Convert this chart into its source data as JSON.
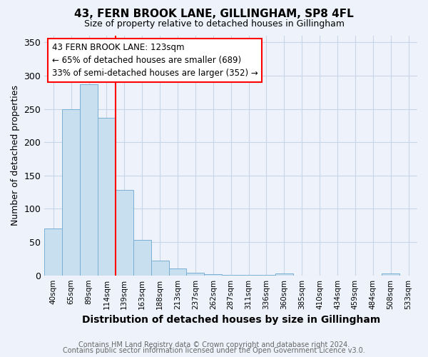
{
  "title1": "43, FERN BROOK LANE, GILLINGHAM, SP8 4FL",
  "title2": "Size of property relative to detached houses in Gillingham",
  "xlabel": "Distribution of detached houses by size in Gillingham",
  "ylabel": "Number of detached properties",
  "footnote1": "Contains HM Land Registry data © Crown copyright and database right 2024.",
  "footnote2": "Contains public sector information licensed under the Open Government Licence v3.0.",
  "categories": [
    "40sqm",
    "65sqm",
    "89sqm",
    "114sqm",
    "139sqm",
    "163sqm",
    "188sqm",
    "213sqm",
    "237sqm",
    "262sqm",
    "287sqm",
    "311sqm",
    "336sqm",
    "360sqm",
    "385sqm",
    "410sqm",
    "434sqm",
    "459sqm",
    "484sqm",
    "508sqm",
    "533sqm"
  ],
  "values": [
    70,
    250,
    287,
    237,
    128,
    53,
    22,
    10,
    4,
    2,
    1,
    1,
    1,
    3,
    0,
    0,
    0,
    0,
    0,
    3,
    0
  ],
  "bar_color": "#c8dff0",
  "bar_edge_color": "#7ab0d4",
  "grid_color": "#c8d4e8",
  "background_color": "#eef2fb",
  "red_line_x": 3.5,
  "annotation_text": "43 FERN BROOK LANE: 123sqm\n← 65% of detached houses are smaller (689)\n33% of semi-detached houses are larger (352) →",
  "annotation_box_color": "white",
  "annotation_box_edge": "red",
  "ylim": [
    0,
    360
  ],
  "yticks": [
    0,
    50,
    100,
    150,
    200,
    250,
    300,
    350
  ]
}
